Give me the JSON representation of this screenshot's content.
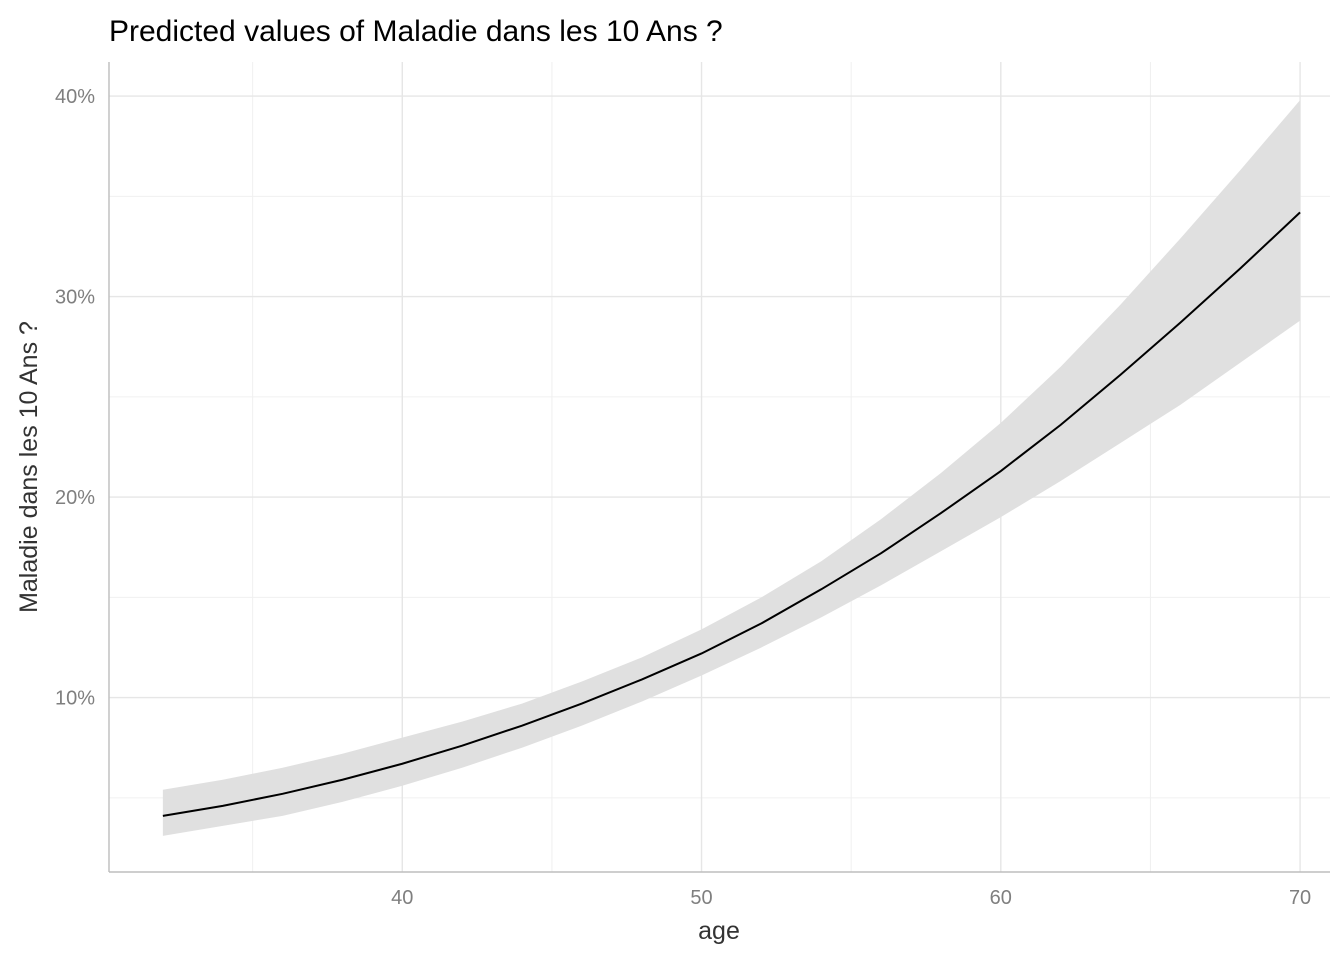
{
  "chart_data": {
    "type": "line",
    "title": "Predicted values of Maladie dans les 10 Ans ?",
    "xlabel": "age",
    "ylabel": "Maladie dans les 10 Ans ?",
    "xlim": [
      30.2,
      71.0
    ],
    "ylim": [
      0.013,
      0.417
    ],
    "x_ticks": [
      40,
      50,
      60,
      70
    ],
    "x_tick_labels": [
      "40",
      "50",
      "60",
      "70"
    ],
    "y_ticks": [
      0.1,
      0.2,
      0.3,
      0.4
    ],
    "y_tick_labels": [
      "10%",
      "20%",
      "30%",
      "40%"
    ],
    "grid": true,
    "legend": "none",
    "series": [
      {
        "x": [
          32,
          34,
          36,
          38,
          40,
          42,
          44,
          46,
          48,
          50,
          52,
          54,
          56,
          58,
          60,
          62,
          64,
          66,
          68,
          70
        ],
        "values": [
          0.041,
          0.046,
          0.052,
          0.059,
          0.067,
          0.076,
          0.086,
          0.097,
          0.109,
          0.122,
          0.137,
          0.154,
          0.172,
          0.192,
          0.213,
          0.236,
          0.261,
          0.287,
          0.314,
          0.342
        ],
        "lower": [
          0.031,
          0.036,
          0.041,
          0.048,
          0.056,
          0.065,
          0.075,
          0.086,
          0.098,
          0.111,
          0.125,
          0.14,
          0.156,
          0.173,
          0.19,
          0.208,
          0.227,
          0.246,
          0.267,
          0.288
        ],
        "upper": [
          0.054,
          0.059,
          0.065,
          0.072,
          0.08,
          0.088,
          0.097,
          0.108,
          0.12,
          0.134,
          0.15,
          0.168,
          0.189,
          0.212,
          0.237,
          0.265,
          0.296,
          0.329,
          0.363,
          0.398
        ]
      }
    ],
    "colors": {
      "line": "#000000",
      "band": "#e0e0e0",
      "grid": "#ebebeb"
    }
  }
}
